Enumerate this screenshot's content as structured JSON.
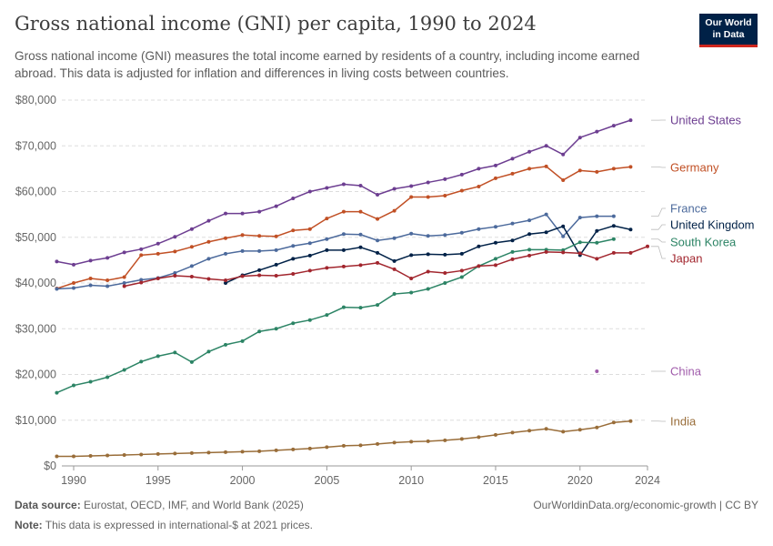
{
  "header": {
    "title": "Gross national income (GNI) per capita, 1990 to 2024",
    "subtitle": "Gross national income (GNI) measures the total income earned by residents of a country, including income earned abroad. This data is adjusted for inflation and differences in living costs between countries.",
    "logo_line1": "Our World",
    "logo_line2": "in Data"
  },
  "footer": {
    "source_label": "Data source:",
    "source_text": "Eurostat, OECD, IMF, and World Bank (2025)",
    "note_label": "Note:",
    "note_text": "This data is expressed in international-$ at 2021 prices.",
    "right_text": "OurWorldinData.org/economic-growth | CC BY"
  },
  "chart_data": {
    "type": "line",
    "title": "Gross national income (GNI) per capita, 1990 to 2024",
    "xlabel": "",
    "ylabel": "",
    "xlim": [
      1990,
      2024
    ],
    "ylim": [
      0,
      80000
    ],
    "x_ticks": [
      "1990",
      "1995",
      "2000",
      "2005",
      "2010",
      "2015",
      "2020",
      "2024"
    ],
    "y_ticks": [
      "$0",
      "$10,000",
      "$20,000",
      "$30,000",
      "$40,000",
      "$50,000",
      "$60,000",
      "$70,000",
      "$80,000"
    ],
    "grid": true,
    "series": [
      {
        "name": "United States",
        "color": "#6d3e91",
        "start_year": 1989,
        "values": [
          44700,
          44000,
          44900,
          45500,
          46700,
          47400,
          48600,
          50100,
          51800,
          53600,
          55200,
          55200,
          55600,
          56800,
          58500,
          60000,
          60800,
          61600,
          61300,
          59300,
          60600,
          61200,
          62000,
          62700,
          63700,
          65000,
          65700,
          67200,
          68700,
          70000,
          68100,
          71800,
          73100,
          74400,
          75600
        ]
      },
      {
        "name": "Germany",
        "color": "#c15025",
        "start_year": 1989,
        "values": [
          38800,
          40000,
          41000,
          40600,
          41300,
          46100,
          46400,
          46900,
          47900,
          49000,
          49800,
          50500,
          50300,
          50200,
          51500,
          51800,
          54100,
          55600,
          55600,
          54000,
          55800,
          58800,
          58800,
          59100,
          60200,
          61100,
          62900,
          63900,
          65000,
          65500,
          62500,
          64600,
          64300,
          65000,
          65400
        ]
      },
      {
        "name": "France",
        "color": "#4c6a9c",
        "start_year": 1989,
        "values": [
          38700,
          38900,
          39500,
          39300,
          40000,
          40700,
          41100,
          42200,
          43700,
          45300,
          46400,
          47000,
          47000,
          47200,
          48100,
          48700,
          49600,
          50700,
          50600,
          49300,
          49800,
          50800,
          50300,
          50500,
          51000,
          51800,
          52300,
          53000,
          53700,
          55000,
          50200,
          54300,
          54600,
          54600
        ]
      },
      {
        "name": "United Kingdom",
        "color": "#002147",
        "start_year": 1999,
        "values": [
          40000,
          41700,
          42800,
          44000,
          45300,
          46000,
          47200,
          47200,
          47800,
          46600,
          44800,
          46100,
          46300,
          46200,
          46400,
          48000,
          48800,
          49300,
          50700,
          51100,
          52400,
          46100,
          51400,
          52500,
          51700
        ]
      },
      {
        "name": "South Korea",
        "color": "#2c8465",
        "start_year": 1989,
        "values": [
          16000,
          17600,
          18400,
          19400,
          21000,
          22800,
          24000,
          24800,
          22700,
          25000,
          26500,
          27300,
          29400,
          30000,
          31200,
          31900,
          33000,
          34700,
          34600,
          35200,
          37600,
          37900,
          38700,
          40000,
          41300,
          43700,
          45300,
          46800,
          47300,
          47300,
          47200,
          48900,
          48800,
          49600
        ]
      },
      {
        "name": "Japan",
        "color": "#a2262e",
        "start_year": 1993,
        "values": [
          39300,
          40100,
          41000,
          41600,
          41400,
          40900,
          40600,
          41500,
          41700,
          41600,
          42000,
          42700,
          43300,
          43600,
          43900,
          44400,
          43000,
          41000,
          42500,
          42200,
          42700,
          43700,
          43900,
          45200,
          46000,
          46800,
          46700,
          46500,
          45300,
          46600,
          46600,
          48000
        ]
      },
      {
        "name": "China",
        "color": "#b16214",
        "start_year": 1989,
        "values": []
      },
      {
        "name": "India",
        "color": "#996d39",
        "start_year": 1989,
        "values": [
          2100,
          2100,
          2200,
          2300,
          2400,
          2500,
          2600,
          2700,
          2800,
          2900,
          3000,
          3100,
          3200,
          3400,
          3600,
          3800,
          4100,
          4400,
          4500,
          4800,
          5100,
          5300,
          5400,
          5600,
          5900,
          6300,
          6800,
          7300,
          7700,
          8100,
          7500,
          7900,
          8400,
          9500,
          9800
        ]
      }
    ],
    "china_point": {
      "year": 2021,
      "value": 20700,
      "color": "#a05cab"
    }
  }
}
